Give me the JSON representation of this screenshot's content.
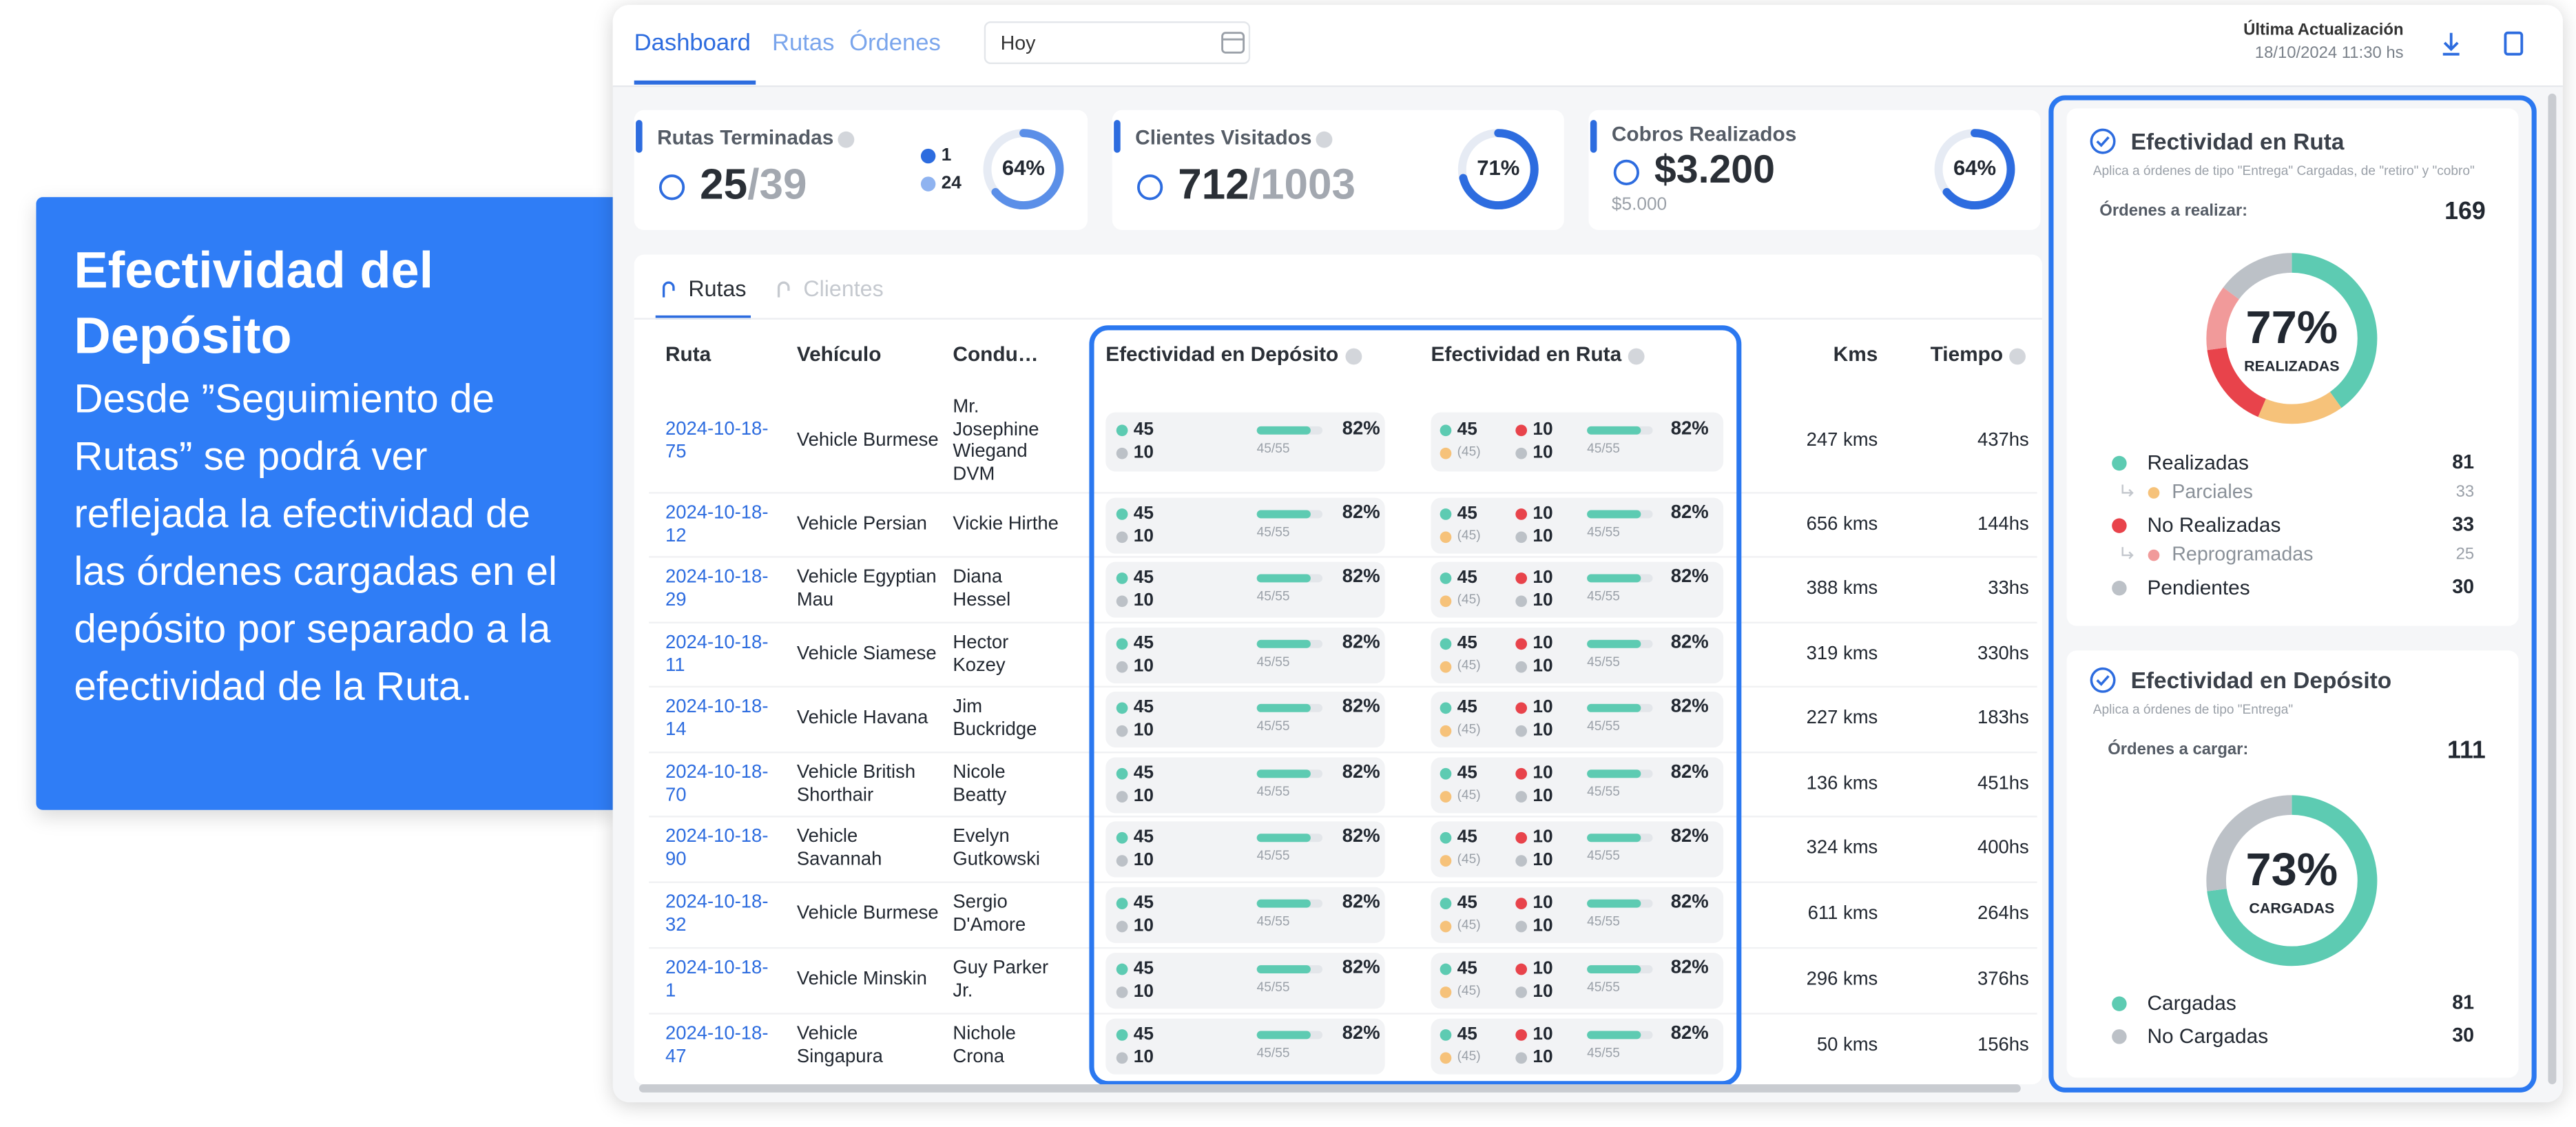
{
  "callout": {
    "title": "Efectividad del Depósito",
    "body": "Desde ”Seguimiento de Rutas” se podrá ver reflejada la efectividad de las órdenes cargadas en el depósito por separado a la efectividad de la Ruta."
  },
  "nav": {
    "tabs": [
      "Dashboard",
      "Rutas",
      "Órdenes"
    ],
    "date": "Hoy",
    "update_label": "Última Actualización",
    "update_time": "18/10/2024 11:30 hs"
  },
  "kpis": [
    {
      "title": "Rutas Terminadas",
      "value": "25",
      "total": "/39",
      "legend": [
        "1",
        "24"
      ],
      "percent": "64%"
    },
    {
      "title": "Clientes Visitados",
      "value": "712",
      "total": "/1003",
      "percent": "71%"
    },
    {
      "title": "Cobros Realizados",
      "value": "$3.200",
      "sub": "$5.000",
      "percent": "64%"
    }
  ],
  "table": {
    "tabs": [
      "Rutas",
      "Clientes"
    ],
    "columns": [
      "Ruta",
      "Vehículo",
      "Condu…",
      "Efectividad en Depósito",
      "Efectividad en Ruta",
      "Kms",
      "Tiempo"
    ],
    "rows": [
      {
        "ruta": "2024-10-18-75",
        "vehiculo": "Vehicle Burmese",
        "conductor": "Mr. Josephine Wiegand DVM",
        "deposito": {
          "cargadas": "45",
          "no_cargadas": "10",
          "ratio": "45/55",
          "percent": "82%"
        },
        "en_ruta": {
          "realizadas": "45",
          "parciales": "(45)",
          "no_realizadas": "10",
          "pendientes": "10",
          "ratio": "45/55",
          "percent": "82%"
        },
        "kms": "247 kms",
        "tiempo": "437hs"
      },
      {
        "ruta": "2024-10-18-12",
        "vehiculo": "Vehicle Persian",
        "conductor": "Vickie Hirthe",
        "deposito": {
          "cargadas": "45",
          "no_cargadas": "10",
          "ratio": "45/55",
          "percent": "82%"
        },
        "en_ruta": {
          "realizadas": "45",
          "parciales": "(45)",
          "no_realizadas": "10",
          "pendientes": "10",
          "ratio": "45/55",
          "percent": "82%"
        },
        "kms": "656 kms",
        "tiempo": "144hs"
      },
      {
        "ruta": "2024-10-18-29",
        "vehiculo": "Vehicle Egyptian Mau",
        "conductor": "Diana Hessel",
        "deposito": {
          "cargadas": "45",
          "no_cargadas": "10",
          "ratio": "45/55",
          "percent": "82%"
        },
        "en_ruta": {
          "realizadas": "45",
          "parciales": "(45)",
          "no_realizadas": "10",
          "pendientes": "10",
          "ratio": "45/55",
          "percent": "82%"
        },
        "kms": "388 kms",
        "tiempo": "33hs"
      },
      {
        "ruta": "2024-10-18-11",
        "vehiculo": "Vehicle Siamese",
        "conductor": "Hector Kozey",
        "deposito": {
          "cargadas": "45",
          "no_cargadas": "10",
          "ratio": "45/55",
          "percent": "82%"
        },
        "en_ruta": {
          "realizadas": "45",
          "parciales": "(45)",
          "no_realizadas": "10",
          "pendientes": "10",
          "ratio": "45/55",
          "percent": "82%"
        },
        "kms": "319 kms",
        "tiempo": "330hs"
      },
      {
        "ruta": "2024-10-18-14",
        "vehiculo": "Vehicle Havana",
        "conductor": "Jim Buckridge",
        "deposito": {
          "cargadas": "45",
          "no_cargadas": "10",
          "ratio": "45/55",
          "percent": "82%"
        },
        "en_ruta": {
          "realizadas": "45",
          "parciales": "(45)",
          "no_realizadas": "10",
          "pendientes": "10",
          "ratio": "45/55",
          "percent": "82%"
        },
        "kms": "227 kms",
        "tiempo": "183hs"
      },
      {
        "ruta": "2024-10-18-70",
        "vehiculo": "Vehicle British Shorthair",
        "conductor": "Nicole Beatty",
        "deposito": {
          "cargadas": "45",
          "no_cargadas": "10",
          "ratio": "45/55",
          "percent": "82%"
        },
        "en_ruta": {
          "realizadas": "45",
          "parciales": "(45)",
          "no_realizadas": "10",
          "pendientes": "10",
          "ratio": "45/55",
          "percent": "82%"
        },
        "kms": "136 kms",
        "tiempo": "451hs"
      },
      {
        "ruta": "2024-10-18-90",
        "vehiculo": "Vehicle Savannah",
        "conductor": "Evelyn Gutkowski",
        "deposito": {
          "cargadas": "45",
          "no_cargadas": "10",
          "ratio": "45/55",
          "percent": "82%"
        },
        "en_ruta": {
          "realizadas": "45",
          "parciales": "(45)",
          "no_realizadas": "10",
          "pendientes": "10",
          "ratio": "45/55",
          "percent": "82%"
        },
        "kms": "324 kms",
        "tiempo": "400hs"
      },
      {
        "ruta": "2024-10-18-32",
        "vehiculo": "Vehicle Burmese",
        "conductor": "Sergio D'Amore",
        "deposito": {
          "cargadas": "45",
          "no_cargadas": "10",
          "ratio": "45/55",
          "percent": "82%"
        },
        "en_ruta": {
          "realizadas": "45",
          "parciales": "(45)",
          "no_realizadas": "10",
          "pendientes": "10",
          "ratio": "45/55",
          "percent": "82%"
        },
        "kms": "611 kms",
        "tiempo": "264hs"
      },
      {
        "ruta": "2024-10-18-1",
        "vehiculo": "Vehicle Minskin",
        "conductor": "Guy Parker Jr.",
        "deposito": {
          "cargadas": "45",
          "no_cargadas": "10",
          "ratio": "45/55",
          "percent": "82%"
        },
        "en_ruta": {
          "realizadas": "45",
          "parciales": "(45)",
          "no_realizadas": "10",
          "pendientes": "10",
          "ratio": "45/55",
          "percent": "82%"
        },
        "kms": "296 kms",
        "tiempo": "376hs"
      },
      {
        "ruta": "2024-10-18-47",
        "vehiculo": "Vehicle Singapura",
        "conductor": "Nichole Crona",
        "deposito": {
          "cargadas": "45",
          "no_cargadas": "10",
          "ratio": "45/55",
          "percent": "82%"
        },
        "en_ruta": {
          "realizadas": "45",
          "parciales": "(45)",
          "no_realizadas": "10",
          "pendientes": "10",
          "ratio": "45/55",
          "percent": "82%"
        },
        "kms": "50 kms",
        "tiempo": "156hs"
      }
    ]
  },
  "ruta_panel": {
    "title": "Efectividad en Ruta",
    "note": "Aplica a órdenes de tipo \"Entrega\" Cargadas, de \"retiro\" y \"cobro\"",
    "count_label": "Órdenes a realizar:",
    "count": 169,
    "percent": "77%",
    "percent_label": "REALIZADAS",
    "legend": [
      {
        "label": "Realizadas",
        "value": 81,
        "color": "#5dcbb2"
      },
      {
        "label": "Parciales",
        "value": 33,
        "color": "#f6c27a",
        "sub": true
      },
      {
        "label": "No Realizadas",
        "value": 33,
        "color": "#e8434b"
      },
      {
        "label": "Reprogramadas",
        "value": 25,
        "color": "#f19a9a",
        "sub": true
      },
      {
        "label": "Pendientes",
        "value": 30,
        "color": "#bcc1c7"
      }
    ]
  },
  "deposito_panel": {
    "title": "Efectividad en Depósito",
    "note": "Aplica a órdenes de tipo \"Entrega\"",
    "count_label": "Órdenes a cargar:",
    "count": 111,
    "percent": "73%",
    "percent_label": "CARGADAS",
    "legend": [
      {
        "label": "Cargadas",
        "value": 81,
        "color": "#5dcbb2"
      },
      {
        "label": "No Cargadas",
        "value": 30,
        "color": "#bcc1c7"
      }
    ]
  }
}
